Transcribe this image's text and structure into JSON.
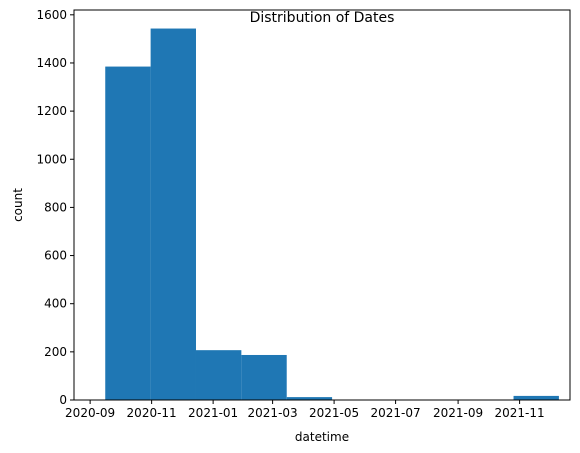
{
  "chart_data": {
    "type": "bar",
    "title": "Distribution of Dates",
    "xlabel": "datetime",
    "ylabel": "count",
    "bar_color": "#1f77b4",
    "grid": false,
    "legend": "none",
    "xlim": [
      "2020-08-16",
      "2021-12-21"
    ],
    "ylim": [
      0,
      1620
    ],
    "x_ticks": [
      "2020-09",
      "2020-11",
      "2021-01",
      "2021-03",
      "2021-05",
      "2021-07",
      "2021-09",
      "2021-11"
    ],
    "y_ticks": [
      0,
      200,
      400,
      600,
      800,
      1000,
      1200,
      1400,
      1600
    ],
    "bins": [
      {
        "start": "2020-09-16",
        "end": "2020-10-31",
        "count": 1385
      },
      {
        "start": "2020-10-31",
        "end": "2020-12-15",
        "count": 1543
      },
      {
        "start": "2020-12-15",
        "end": "2021-01-29",
        "count": 207
      },
      {
        "start": "2021-01-29",
        "end": "2021-03-15",
        "count": 187
      },
      {
        "start": "2021-03-15",
        "end": "2021-04-29",
        "count": 12
      },
      {
        "start": "2021-04-29",
        "end": "2021-06-13",
        "count": 0
      },
      {
        "start": "2021-06-13",
        "end": "2021-07-28",
        "count": 0
      },
      {
        "start": "2021-07-28",
        "end": "2021-09-11",
        "count": 0
      },
      {
        "start": "2021-09-11",
        "end": "2021-10-26",
        "count": 0
      },
      {
        "start": "2021-10-26",
        "end": "2021-12-10",
        "count": 17
      }
    ]
  }
}
